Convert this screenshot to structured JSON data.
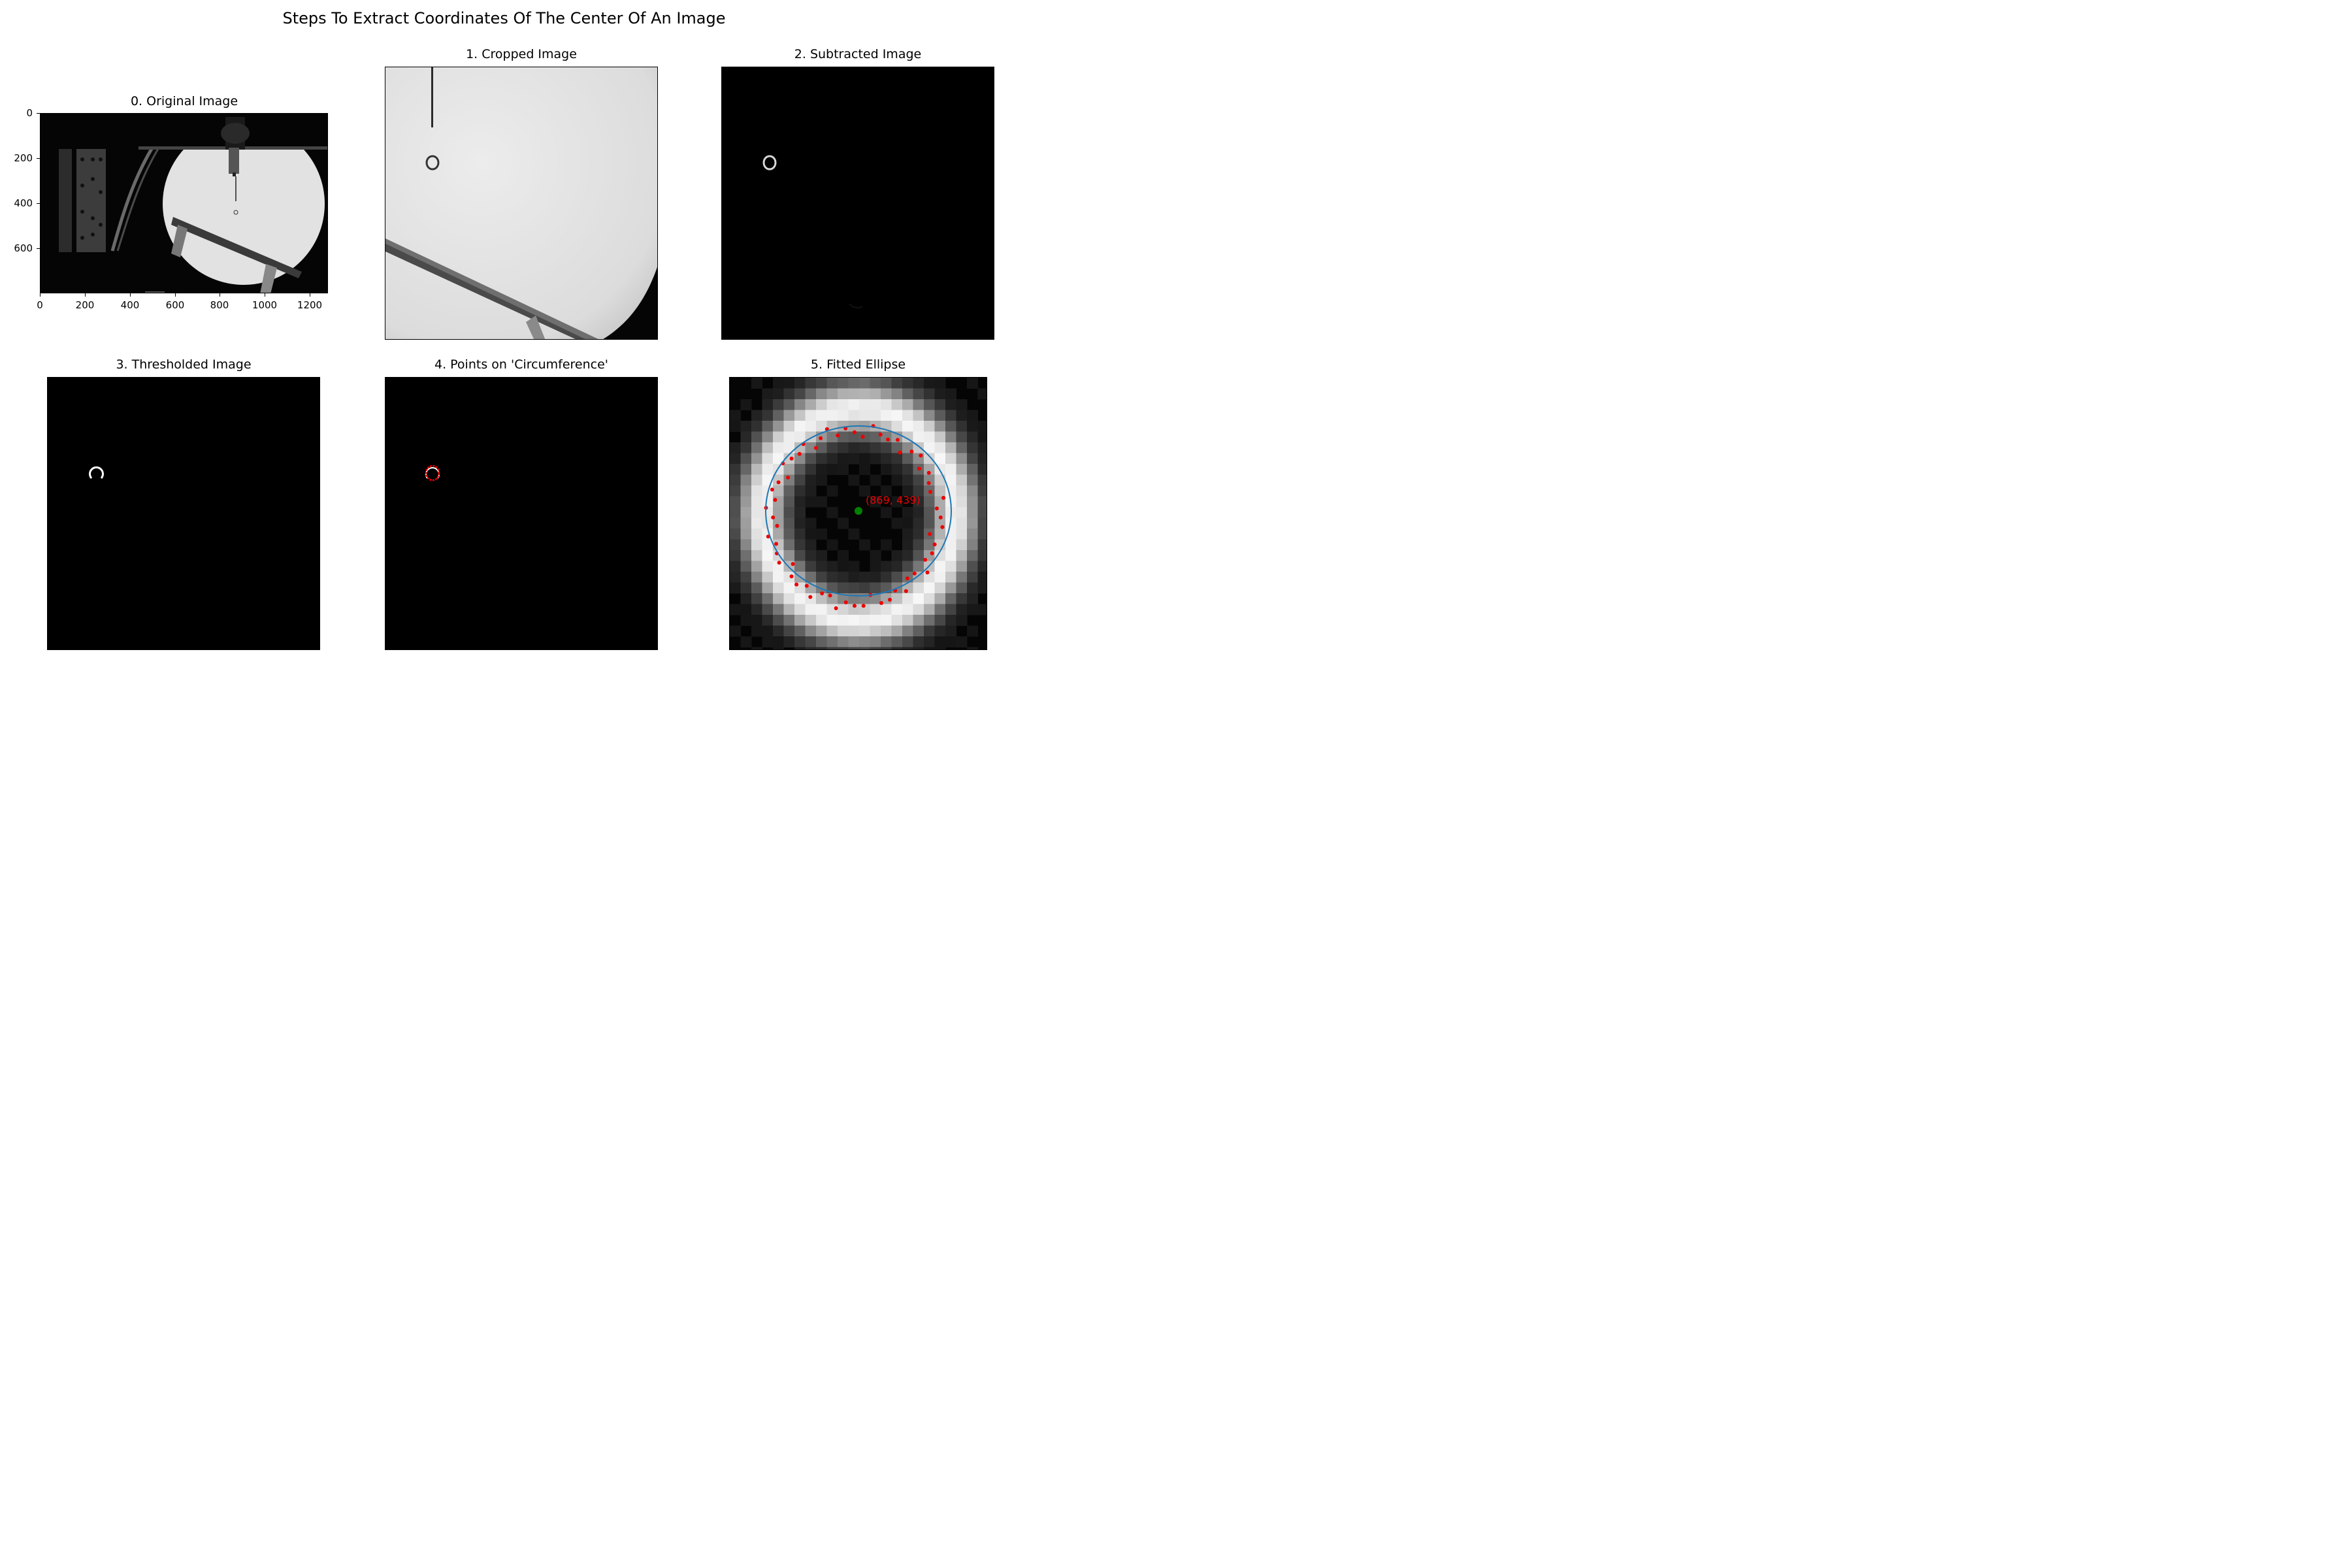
{
  "figure": {
    "title": "Steps To Extract Coordinates Of The Center Of An Image"
  },
  "panels": {
    "original": {
      "title": "0. Original Image",
      "x_ticks": [
        "0",
        "200",
        "400",
        "600",
        "800",
        "1000",
        "1200"
      ],
      "y_ticks": [
        "0",
        "200",
        "400",
        "600"
      ]
    },
    "cropped": {
      "title": "1. Cropped Image"
    },
    "subtracted": {
      "title": "2. Subtracted Image"
    },
    "thresholded": {
      "title": "3. Thresholded Image"
    },
    "points": {
      "title": "4. Points on 'Circumference'"
    },
    "fitted": {
      "title": "5. Fitted Ellipse",
      "center_label": "(869, 439)"
    }
  },
  "colors": {
    "points": "#ee0000",
    "ellipse": "#1f77b4",
    "center": "#008000",
    "label": "#ee0000"
  }
}
